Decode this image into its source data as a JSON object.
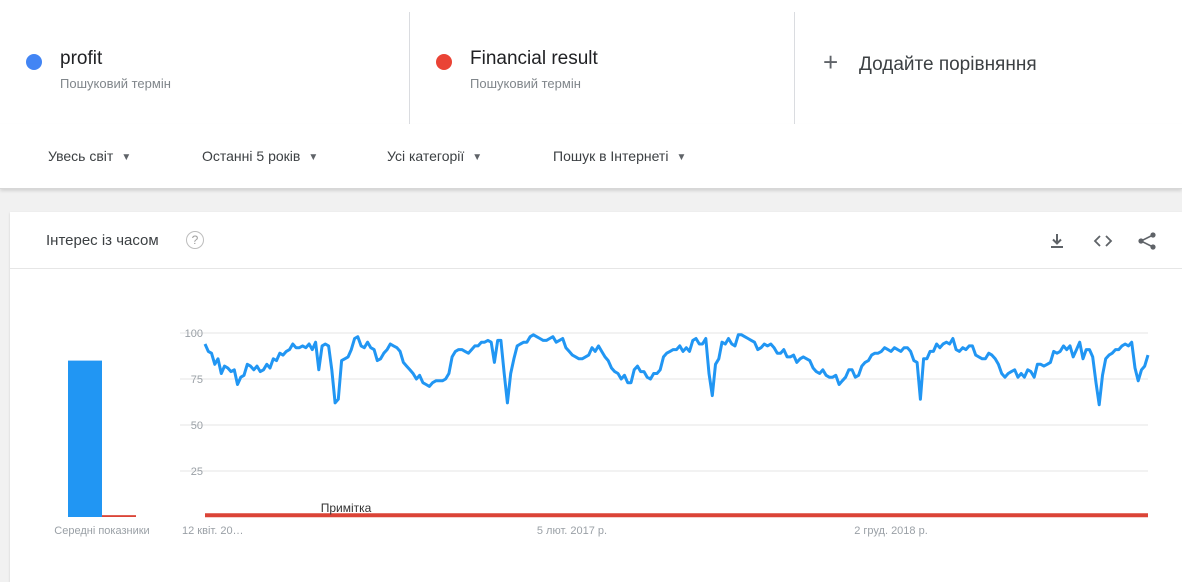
{
  "compare": {
    "terms": [
      {
        "name": "profit",
        "subtitle": "Пошуковий термін",
        "color": "#4285f4"
      },
      {
        "name": "Financial result",
        "subtitle": "Пошуковий термін",
        "color": "#ea4335"
      }
    ],
    "add_label": "Додайте порівняння",
    "add_icon": "plus-icon"
  },
  "filters": [
    {
      "label": "Увесь світ"
    },
    {
      "label": "Останні 5 років"
    },
    {
      "label": "Усі категорії"
    },
    {
      "label": "Пошук в Інтернеті"
    }
  ],
  "card": {
    "title": "Інтерес із часом",
    "help_icon": "?",
    "icons": [
      "download-icon",
      "embed-code-icon",
      "share-icon"
    ]
  },
  "chart_data": {
    "type": "line",
    "avg_label": "Середні показники",
    "averages": [
      {
        "name": "profit",
        "value": 85,
        "color": "#2196f3"
      },
      {
        "name": "Financial result",
        "value": 1,
        "color": "#db4437"
      }
    ],
    "ylim": [
      0,
      100
    ],
    "yticks": [
      "100",
      "75",
      "50",
      "25"
    ],
    "x_tick_labels": [
      "12 квіт. 20…",
      "5 лют. 2017 р.",
      "2 груд. 2018 р."
    ],
    "annotation": "Примітка",
    "series": [
      {
        "name": "profit",
        "color": "#2196f3",
        "values": [
          94,
          90,
          89,
          83,
          86,
          78,
          82,
          81,
          79,
          80,
          72,
          76,
          77,
          83,
          82,
          80,
          82,
          79,
          80,
          83,
          81,
          86,
          85,
          89,
          88,
          90,
          91,
          94,
          92,
          92,
          93,
          92,
          94,
          91,
          95,
          80,
          93,
          94,
          93,
          80,
          62,
          64,
          85,
          86,
          87,
          91,
          97,
          98,
          93,
          92,
          95,
          92,
          91,
          85,
          86,
          89,
          91,
          94,
          93,
          92,
          90,
          84,
          82,
          80,
          78,
          75,
          77,
          73,
          72,
          71,
          73,
          74,
          74,
          74,
          75,
          78,
          87,
          90,
          91,
          91,
          90,
          89,
          91,
          93,
          93,
          95,
          95,
          96,
          95,
          84,
          96,
          96,
          78,
          62,
          78,
          86,
          93,
          94,
          95,
          95,
          98,
          99,
          98,
          97,
          96,
          96,
          97,
          98,
          95,
          96,
          97,
          92,
          90,
          88,
          87,
          86,
          86,
          87,
          88,
          92,
          90,
          93,
          90,
          87,
          85,
          81,
          79,
          78,
          75,
          77,
          73,
          73,
          80,
          82,
          79,
          79,
          76,
          75,
          78,
          78,
          80,
          87,
          89,
          90,
          91,
          91,
          93,
          90,
          92,
          90,
          96,
          97,
          94,
          94,
          97,
          78,
          66,
          83,
          86,
          95,
          94,
          97,
          94,
          93,
          99,
          99,
          98,
          97,
          96,
          95,
          91,
          92,
          94,
          93,
          94,
          92,
          89,
          89,
          91,
          87,
          87,
          88,
          84,
          86,
          87,
          86,
          85,
          81,
          79,
          78,
          80,
          77,
          76,
          76,
          77,
          72,
          74,
          76,
          80,
          80,
          76,
          77,
          82,
          84,
          85,
          88,
          89,
          89,
          90,
          92,
          91,
          90,
          92,
          91,
          90,
          92,
          92,
          90,
          85,
          84,
          64,
          86,
          86,
          90,
          90,
          94,
          92,
          94,
          95,
          94,
          97,
          91,
          90,
          92,
          91,
          93,
          93,
          88,
          87,
          86,
          86,
          89,
          88,
          86,
          83,
          78,
          76,
          78,
          79,
          80,
          76,
          78,
          76,
          80,
          79,
          76,
          83,
          83,
          82,
          83,
          84,
          90,
          89,
          90,
          93,
          91,
          93,
          87,
          91,
          95,
          86,
          91,
          91,
          87,
          73,
          61,
          77,
          86,
          88,
          89,
          91,
          91,
          93,
          94,
          93,
          95,
          81,
          74,
          80,
          82,
          88
        ]
      },
      {
        "name": "Financial result",
        "color": "#db4437",
        "values": [
          1
        ]
      }
    ]
  }
}
